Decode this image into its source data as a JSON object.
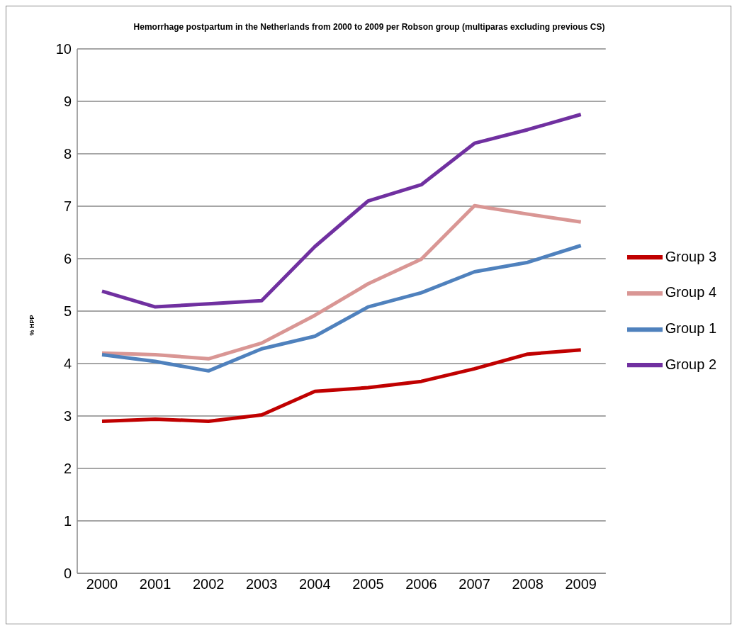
{
  "chart_data": {
    "type": "line",
    "title": "Hemorrhage postpartum in the Netherlands from 2000 to 2009 per Robson group (multiparas excluding previous CS)",
    "ylabel": "% HPP",
    "categories": [
      "2000",
      "2001",
      "2002",
      "2003",
      "2004",
      "2005",
      "2006",
      "2007",
      "2008",
      "2009"
    ],
    "series": [
      {
        "name": "Group 3",
        "color": "#c00000",
        "values": [
          2.9,
          2.94,
          2.9,
          3.02,
          3.47,
          3.54,
          3.66,
          3.9,
          4.18,
          4.26
        ]
      },
      {
        "name": "Group 4",
        "color": "#d99694",
        "values": [
          4.2,
          4.17,
          4.09,
          4.39,
          4.92,
          5.52,
          5.99,
          7.01,
          6.85,
          6.7
        ]
      },
      {
        "name": "Group 1",
        "color": "#4f81bd",
        "values": [
          4.17,
          4.04,
          3.86,
          4.28,
          4.52,
          5.08,
          5.35,
          5.75,
          5.93,
          6.25
        ]
      },
      {
        "name": "Group 2",
        "color": "#7030a0",
        "values": [
          5.38,
          5.08,
          5.14,
          5.2,
          6.23,
          7.1,
          7.41,
          8.2,
          8.46,
          8.75
        ]
      }
    ],
    "ylim": [
      0,
      10
    ],
    "yticks": [
      0,
      1,
      2,
      3,
      4,
      5,
      6,
      7,
      8,
      9,
      10
    ],
    "grid": "y",
    "legend": "right",
    "marker": "none",
    "line_style": "solid"
  }
}
